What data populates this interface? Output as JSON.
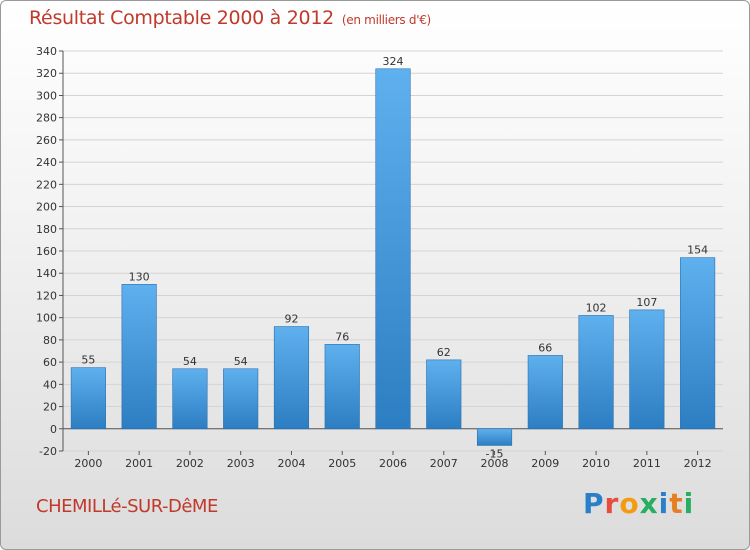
{
  "title": "Résultat Comptable 2000 à 2012",
  "subtitle": "(en milliers d'€)",
  "town": "CHEMILLé-SUR-DêME",
  "logo": {
    "letters": [
      "P",
      "r",
      "o",
      "x",
      "i",
      "t",
      "i"
    ],
    "colors": [
      "#2a7fc9",
      "#e74c3c",
      "#f39c12",
      "#27ae60",
      "#2a7fc9",
      "#e67e22",
      "#27ae60"
    ]
  },
  "chart_data": {
    "type": "bar",
    "categories": [
      "2000",
      "2001",
      "2002",
      "2003",
      "2004",
      "2005",
      "2006",
      "2007",
      "2008",
      "2009",
      "2010",
      "2011",
      "2012"
    ],
    "values": [
      55,
      130,
      54,
      54,
      92,
      76,
      324,
      62,
      -15,
      66,
      102,
      107,
      154
    ],
    "labels": [
      "55",
      "130",
      "54",
      "54",
      "92",
      "76",
      "324",
      "62",
      "-15",
      "66",
      "102",
      "107",
      "154"
    ],
    "ylim": [
      -20,
      340
    ],
    "yticks": [
      "-20",
      "0",
      "20",
      "40",
      "60",
      "80",
      "100",
      "120",
      "140",
      "160",
      "180",
      "200",
      "220",
      "240",
      "260",
      "280",
      "300",
      "320",
      "340"
    ],
    "grid": true,
    "bar_color": "#3a8fd6",
    "xlabel": "",
    "ylabel": ""
  }
}
